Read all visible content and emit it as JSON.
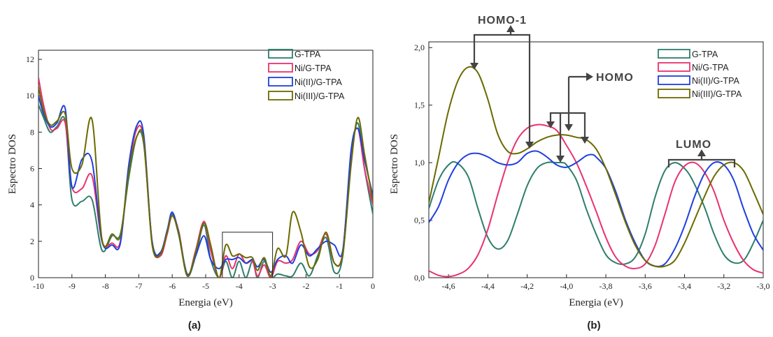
{
  "chart_data": [
    {
      "type": "line",
      "panel_label": "(a)",
      "xlabel": "Energia (eV)",
      "ylabel": "Espectro  DOS",
      "xlim": [
        -10,
        0
      ],
      "ylim": [
        0,
        12.5
      ],
      "xticks": [
        -10,
        -9,
        -8,
        -7,
        -6,
        -5,
        -4,
        -3,
        -2,
        -1,
        0
      ],
      "xtick_labels": [
        "-10",
        "-9",
        "-8",
        "-7",
        "-6",
        "-5",
        "-4",
        "-3",
        "-2",
        "-1",
        "0"
      ],
      "yticks": [
        0,
        2,
        4,
        6,
        8,
        10,
        12
      ],
      "ytick_labels": [
        "0",
        "2",
        "4",
        "6",
        "8",
        "10",
        "12"
      ],
      "legend_position": "top-right",
      "zoom_box": {
        "x": [
          -4.5,
          -3.0
        ],
        "y": [
          0,
          2.5
        ]
      },
      "series": [
        {
          "name": "G-TPA",
          "color": "#2e7d6b",
          "x": [
            -10,
            -9.85,
            -9.65,
            -9.45,
            -9.2,
            -9.0,
            -8.7,
            -8.4,
            -8.1,
            -7.8,
            -7.55,
            -7.3,
            -7.05,
            -6.85,
            -6.6,
            -6.35,
            -6.15,
            -6.0,
            -5.8,
            -5.55,
            -5.3,
            -5.05,
            -4.85,
            -4.6,
            -4.4,
            -4.2,
            -4.0,
            -3.8,
            -3.6,
            -3.45,
            -3.25,
            -3.05,
            -2.85,
            -2.6,
            -2.4,
            -2.15,
            -1.9,
            -1.65,
            -1.4,
            -1.15,
            -0.9,
            -0.65,
            -0.45,
            -0.25,
            0
          ],
          "y": [
            9.5,
            8.8,
            8.0,
            8.3,
            8.6,
            4.3,
            4.2,
            4.3,
            1.5,
            2.3,
            2.4,
            5.5,
            7.8,
            7.3,
            2.0,
            1.3,
            2.6,
            3.5,
            2.3,
            0.1,
            1.2,
            2.9,
            1.0,
            0.0,
            0.9,
            0.0,
            0.9,
            0.0,
            0.9,
            0.0,
            0.9,
            0.0,
            0.2,
            0.1,
            0.1,
            0.8,
            0.1,
            1.2,
            2.2,
            0.3,
            1.2,
            6.5,
            8.5,
            6.0,
            3.5
          ]
        },
        {
          "name": "Ni/G-TPA",
          "color": "#e8336f",
          "x": [
            -10,
            -9.85,
            -9.65,
            -9.45,
            -9.2,
            -9.0,
            -8.7,
            -8.4,
            -8.1,
            -7.8,
            -7.55,
            -7.3,
            -7.05,
            -6.85,
            -6.6,
            -6.35,
            -6.15,
            -6.0,
            -5.8,
            -5.55,
            -5.3,
            -5.05,
            -4.85,
            -4.6,
            -4.4,
            -4.2,
            -4.0,
            -3.8,
            -3.6,
            -3.45,
            -3.25,
            -3.05,
            -2.85,
            -2.6,
            -2.4,
            -2.15,
            -1.9,
            -1.65,
            -1.4,
            -1.15,
            -0.9,
            -0.65,
            -0.45,
            -0.25,
            0
          ],
          "y": [
            11.0,
            9.5,
            8.2,
            8.2,
            8.5,
            5.0,
            4.9,
            5.6,
            2.0,
            1.9,
            2.0,
            6.0,
            8.2,
            7.5,
            1.9,
            1.2,
            2.4,
            3.4,
            2.5,
            0.1,
            1.5,
            3.1,
            1.5,
            0.0,
            1.2,
            0.5,
            1.3,
            0.8,
            0.9,
            0.1,
            0.7,
            0.0,
            0.9,
            0.8,
            1.0,
            2.0,
            1.3,
            1.5,
            2.4,
            0.8,
            1.4,
            6.8,
            8.2,
            6.0,
            4.0
          ]
        },
        {
          "name": "Ni(II)/G-TPA",
          "color": "#1f3fe0",
          "x": [
            -10,
            -9.85,
            -9.65,
            -9.45,
            -9.2,
            -9.0,
            -8.7,
            -8.4,
            -8.1,
            -7.8,
            -7.55,
            -7.3,
            -7.05,
            -6.85,
            -6.6,
            -6.35,
            -6.15,
            -6.0,
            -5.8,
            -5.55,
            -5.3,
            -5.05,
            -4.85,
            -4.6,
            -4.4,
            -4.2,
            -4.0,
            -3.8,
            -3.6,
            -3.45,
            -3.25,
            -3.05,
            -2.85,
            -2.6,
            -2.4,
            -2.15,
            -1.9,
            -1.65,
            -1.4,
            -1.15,
            -0.9,
            -0.65,
            -0.45,
            -0.25,
            0
          ],
          "y": [
            10.0,
            9.0,
            8.3,
            8.5,
            9.3,
            5.0,
            6.5,
            6.4,
            2.0,
            1.8,
            1.9,
            6.2,
            8.4,
            7.8,
            1.9,
            1.4,
            2.6,
            3.6,
            2.4,
            0.2,
            1.2,
            2.3,
            1.0,
            0.5,
            1.0,
            1.0,
            1.1,
            0.8,
            1.0,
            0.6,
            1.0,
            0.3,
            1.0,
            1.2,
            0.8,
            1.8,
            1.2,
            1.6,
            2.0,
            1.8,
            1.5,
            7.0,
            8.2,
            6.5,
            4.5
          ]
        },
        {
          "name": "Ni(III)/G-TPA",
          "color": "#6b6a00",
          "x": [
            -10,
            -9.85,
            -9.65,
            -9.45,
            -9.2,
            -9.0,
            -8.7,
            -8.4,
            -8.1,
            -7.8,
            -7.55,
            -7.3,
            -7.05,
            -6.85,
            -6.6,
            -6.35,
            -6.15,
            -6.0,
            -5.8,
            -5.55,
            -5.3,
            -5.05,
            -4.85,
            -4.6,
            -4.4,
            -4.2,
            -4.0,
            -3.8,
            -3.6,
            -3.45,
            -3.25,
            -3.05,
            -2.85,
            -2.6,
            -2.4,
            -2.15,
            -1.9,
            -1.65,
            -1.4,
            -1.15,
            -0.9,
            -0.65,
            -0.45,
            -0.25,
            0
          ],
          "y": [
            10.5,
            9.2,
            8.4,
            8.6,
            9.0,
            6.0,
            6.2,
            8.7,
            2.1,
            2.4,
            2.3,
            5.8,
            7.8,
            7.5,
            1.8,
            1.3,
            2.5,
            3.4,
            2.4,
            0.1,
            1.4,
            3.0,
            1.8,
            0.0,
            1.8,
            1.2,
            1.3,
            1.1,
            1.1,
            0.4,
            1.1,
            0.1,
            1.6,
            1.2,
            3.6,
            2.5,
            0.6,
            1.0,
            2.5,
            0.8,
            1.3,
            6.2,
            8.8,
            6.8,
            4.2
          ]
        }
      ]
    },
    {
      "type": "line",
      "panel_label": "(b)",
      "xlabel": "Energia (eV)",
      "ylabel": "Espectro  DOS",
      "xlim": [
        -4.7,
        -3.0
      ],
      "ylim": [
        0,
        2.05
      ],
      "xticks": [
        -4.6,
        -4.4,
        -4.2,
        -4.0,
        -3.8,
        -3.6,
        -3.4,
        -3.2,
        -3.0
      ],
      "xtick_labels": [
        "-4,6",
        "-4,4",
        "-4,2",
        "-4,0",
        "-3,8",
        "-3,6",
        "-3,4",
        "-3,2",
        "-3,0"
      ],
      "yticks": [
        0,
        0.5,
        1.0,
        1.5,
        2.0
      ],
      "ytick_labels": [
        "0,0",
        "0,5",
        "1,0",
        "1,5",
        "2,0"
      ],
      "legend_position": "top-right",
      "annotations": [
        {
          "text": "HOMO-1"
        },
        {
          "text": "HOMO"
        },
        {
          "text": "LUMO"
        }
      ],
      "series": [
        {
          "name": "G-TPA",
          "color": "#2e7d6b",
          "x": [
            -4.7,
            -4.65,
            -4.6,
            -4.56,
            -4.5,
            -4.45,
            -4.4,
            -4.35,
            -4.3,
            -4.25,
            -4.2,
            -4.15,
            -4.1,
            -4.05,
            -4.02,
            -4.0,
            -3.95,
            -3.9,
            -3.85,
            -3.8,
            -3.75,
            -3.7,
            -3.65,
            -3.6,
            -3.55,
            -3.5,
            -3.45,
            -3.4,
            -3.36,
            -3.3,
            -3.25,
            -3.2,
            -3.15,
            -3.1,
            -3.05,
            -3.0
          ],
          "y": [
            0.6,
            0.85,
            0.98,
            1.0,
            0.88,
            0.6,
            0.35,
            0.25,
            0.32,
            0.55,
            0.8,
            0.95,
            1.0,
            1.0,
            1.0,
            0.98,
            0.85,
            0.6,
            0.38,
            0.2,
            0.13,
            0.12,
            0.18,
            0.38,
            0.7,
            0.93,
            1.0,
            0.95,
            0.85,
            0.62,
            0.38,
            0.2,
            0.13,
            0.15,
            0.3,
            0.5
          ]
        },
        {
          "name": "Ni/G-TPA",
          "color": "#e8336f",
          "x": [
            -4.7,
            -4.65,
            -4.6,
            -4.55,
            -4.5,
            -4.45,
            -4.4,
            -4.35,
            -4.3,
            -4.25,
            -4.2,
            -4.15,
            -4.1,
            -4.05,
            -4.0,
            -3.95,
            -3.9,
            -3.85,
            -3.8,
            -3.75,
            -3.7,
            -3.65,
            -3.6,
            -3.55,
            -3.5,
            -3.45,
            -3.4,
            -3.35,
            -3.3,
            -3.25,
            -3.2,
            -3.15,
            -3.1,
            -3.05,
            -3.0
          ],
          "y": [
            0.06,
            0.02,
            0.01,
            0.03,
            0.08,
            0.2,
            0.42,
            0.72,
            1.0,
            1.2,
            1.3,
            1.33,
            1.32,
            1.28,
            1.15,
            1.0,
            0.8,
            0.58,
            0.35,
            0.18,
            0.1,
            0.08,
            0.12,
            0.28,
            0.55,
            0.83,
            0.97,
            1.0,
            0.92,
            0.75,
            0.5,
            0.3,
            0.15,
            0.07,
            0.04
          ]
        },
        {
          "name": "Ni(II)/G-TPA",
          "color": "#1f3fe0",
          "x": [
            -4.7,
            -4.65,
            -4.6,
            -4.55,
            -4.5,
            -4.45,
            -4.4,
            -4.35,
            -4.3,
            -4.25,
            -4.2,
            -4.15,
            -4.1,
            -4.05,
            -4.0,
            -3.95,
            -3.9,
            -3.87,
            -3.85,
            -3.8,
            -3.75,
            -3.7,
            -3.65,
            -3.6,
            -3.55,
            -3.5,
            -3.45,
            -3.4,
            -3.35,
            -3.3,
            -3.25,
            -3.2,
            -3.15,
            -3.1,
            -3.05,
            -3.0
          ],
          "y": [
            0.48,
            0.62,
            0.85,
            1.0,
            1.07,
            1.08,
            1.05,
            1.0,
            0.98,
            1.0,
            1.08,
            1.1,
            1.05,
            0.98,
            0.96,
            1.0,
            1.06,
            1.07,
            1.05,
            0.95,
            0.75,
            0.5,
            0.3,
            0.15,
            0.1,
            0.12,
            0.25,
            0.45,
            0.7,
            0.9,
            1.0,
            0.98,
            0.85,
            0.6,
            0.38,
            0.24
          ]
        },
        {
          "name": "Ni(III)/G-TPA",
          "color": "#6b6a00",
          "x": [
            -4.7,
            -4.65,
            -4.6,
            -4.55,
            -4.5,
            -4.45,
            -4.4,
            -4.35,
            -4.3,
            -4.25,
            -4.2,
            -4.15,
            -4.1,
            -4.05,
            -4.0,
            -3.95,
            -3.9,
            -3.85,
            -3.8,
            -3.75,
            -3.7,
            -3.65,
            -3.6,
            -3.55,
            -3.5,
            -3.45,
            -3.4,
            -3.35,
            -3.3,
            -3.25,
            -3.2,
            -3.15,
            -3.1,
            -3.05,
            -3.0
          ],
          "y": [
            0.65,
            1.05,
            1.45,
            1.72,
            1.83,
            1.78,
            1.55,
            1.25,
            1.1,
            1.08,
            1.12,
            1.18,
            1.22,
            1.24,
            1.24,
            1.22,
            1.2,
            1.12,
            0.95,
            0.72,
            0.48,
            0.28,
            0.15,
            0.1,
            0.1,
            0.15,
            0.3,
            0.5,
            0.7,
            0.88,
            0.98,
            1.0,
            0.93,
            0.75,
            0.55
          ]
        }
      ]
    }
  ]
}
